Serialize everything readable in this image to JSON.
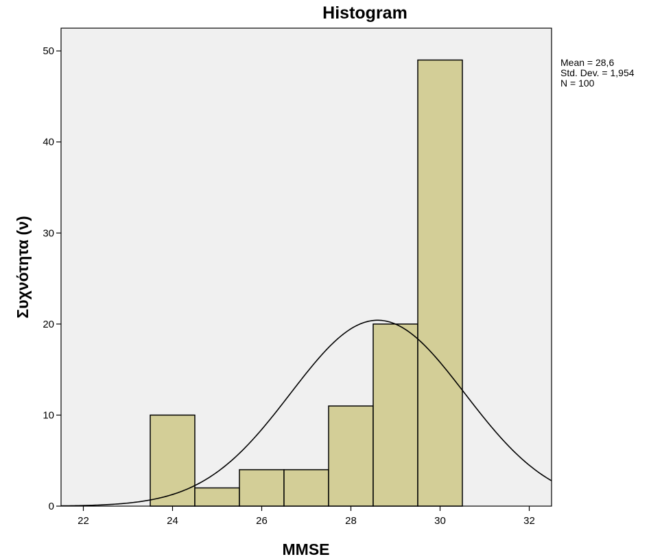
{
  "chart_data": {
    "type": "bar",
    "title": "Histogram",
    "xlabel": "MMSE",
    "ylabel": "Συχνότητα (ν)",
    "xlim": [
      21.5,
      32.5
    ],
    "ylim": [
      0,
      52.5
    ],
    "x_ticks": [
      22,
      24,
      26,
      28,
      30,
      32
    ],
    "y_ticks": [
      0,
      10,
      20,
      30,
      40,
      50
    ],
    "bins": [
      {
        "start": 23.5,
        "end": 24.5,
        "value": 10
      },
      {
        "start": 24.5,
        "end": 25.5,
        "value": 2
      },
      {
        "start": 25.5,
        "end": 26.5,
        "value": 4
      },
      {
        "start": 26.5,
        "end": 27.5,
        "value": 4
      },
      {
        "start": 27.5,
        "end": 28.5,
        "value": 11
      },
      {
        "start": 28.5,
        "end": 29.5,
        "value": 20
      },
      {
        "start": 29.5,
        "end": 30.5,
        "value": 49
      }
    ],
    "normal_curve": {
      "mean": 28.6,
      "std_dev": 1.954,
      "n": 100,
      "bin_width": 1
    },
    "stats_text": [
      "Mean = 28,6",
      "Std. Dev. = 1,954",
      "N = 100"
    ],
    "colors": {
      "plot_background": "#f0f0f0",
      "bar_fill": "#d3ce97",
      "bar_stroke": "#000000",
      "curve": "#000000"
    },
    "grid": false,
    "legend": "none"
  }
}
